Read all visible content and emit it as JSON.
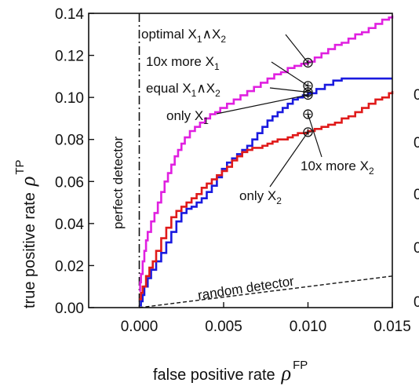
{
  "chart_data": {
    "type": "line",
    "xlabel": "false positive rate",
    "xlabel_symbol": "ρ",
    "xlabel_sup": "FP",
    "ylabel": "true positive rate",
    "ylabel_symbol": "ρ",
    "ylabel_sup": "TP",
    "xlim": [
      -0.003,
      0.015
    ],
    "ylim": [
      0.0,
      0.14
    ],
    "xticks": [
      {
        "value": 0.0,
        "label": "0.000"
      },
      {
        "value": 0.005,
        "label": "0.005"
      },
      {
        "value": 0.01,
        "label": "0.010"
      },
      {
        "value": 0.015,
        "label": "0.015"
      }
    ],
    "yticks": [
      {
        "value": 0.0,
        "label": "0.00"
      },
      {
        "value": 0.02,
        "label": "0.02"
      },
      {
        "value": 0.04,
        "label": "0.04"
      },
      {
        "value": 0.06,
        "label": "0.06"
      },
      {
        "value": 0.08,
        "label": "0.08"
      },
      {
        "value": 0.1,
        "label": "0.10"
      },
      {
        "value": 0.12,
        "label": "0.12"
      },
      {
        "value": 0.14,
        "label": "0.14"
      }
    ],
    "grid": false,
    "series": [
      {
        "key": "magenta",
        "color": "#e020e0",
        "x": [
          0.0,
          5e-05,
          0.0001,
          0.0002,
          0.0003,
          0.0004,
          0.0005,
          0.0007,
          0.0009,
          0.0011,
          0.0013,
          0.0015,
          0.0017,
          0.0019,
          0.0021,
          0.0023,
          0.0025,
          0.0027,
          0.003,
          0.0033,
          0.0036,
          0.0039,
          0.0042,
          0.0045,
          0.0048,
          0.0052,
          0.0056,
          0.006,
          0.0064,
          0.0068,
          0.0072,
          0.0076,
          0.008,
          0.0084,
          0.0088,
          0.0092,
          0.0096,
          0.01,
          0.0104,
          0.0108,
          0.0112,
          0.0116,
          0.012,
          0.0124,
          0.0128,
          0.0132,
          0.0136,
          0.014,
          0.0144,
          0.0148,
          0.015
        ],
        "y": [
          0.008,
          0.012,
          0.016,
          0.022,
          0.027,
          0.032,
          0.036,
          0.041,
          0.045,
          0.05,
          0.055,
          0.06,
          0.064,
          0.068,
          0.072,
          0.075,
          0.078,
          0.081,
          0.084,
          0.086,
          0.088,
          0.09,
          0.092,
          0.093,
          0.095,
          0.097,
          0.099,
          0.101,
          0.103,
          0.105,
          0.107,
          0.109,
          0.111,
          0.112,
          0.114,
          0.115,
          0.116,
          0.117,
          0.119,
          0.121,
          0.123,
          0.125,
          0.126,
          0.128,
          0.13,
          0.131,
          0.133,
          0.135,
          0.137,
          0.138,
          0.139
        ]
      },
      {
        "key": "blue",
        "color": "#1a1adf",
        "x": [
          0.0,
          0.0001,
          0.0002,
          0.0003,
          0.0005,
          0.0007,
          0.001,
          0.0013,
          0.0016,
          0.0019,
          0.0022,
          0.0025,
          0.0028,
          0.0031,
          0.0034,
          0.0037,
          0.004,
          0.0043,
          0.0046,
          0.0049,
          0.0052,
          0.0055,
          0.0058,
          0.0061,
          0.0064,
          0.0067,
          0.007,
          0.0073,
          0.0076,
          0.0079,
          0.0082,
          0.0085,
          0.0088,
          0.0091,
          0.0094,
          0.0097,
          0.01,
          0.0105,
          0.011,
          0.0115,
          0.012,
          0.0125,
          0.013,
          0.0135,
          0.014,
          0.015
        ],
        "y": [
          0.001,
          0.003,
          0.006,
          0.01,
          0.014,
          0.018,
          0.022,
          0.026,
          0.031,
          0.036,
          0.041,
          0.045,
          0.047,
          0.048,
          0.05,
          0.052,
          0.055,
          0.058,
          0.062,
          0.066,
          0.069,
          0.071,
          0.073,
          0.075,
          0.077,
          0.08,
          0.083,
          0.086,
          0.089,
          0.091,
          0.093,
          0.095,
          0.097,
          0.099,
          0.1,
          0.101,
          0.102,
          0.104,
          0.106,
          0.108,
          0.109,
          0.109,
          0.109,
          0.109,
          0.109,
          0.109
        ]
      },
      {
        "key": "red",
        "color": "#e01a1a",
        "x": [
          0.0,
          0.0001,
          0.0002,
          0.0004,
          0.0006,
          0.0008,
          0.001,
          0.0013,
          0.0016,
          0.0019,
          0.0022,
          0.0025,
          0.0028,
          0.0031,
          0.0034,
          0.0037,
          0.004,
          0.0043,
          0.0046,
          0.0049,
          0.0052,
          0.0055,
          0.0058,
          0.0061,
          0.0064,
          0.0067,
          0.007,
          0.0073,
          0.0076,
          0.0079,
          0.0082,
          0.0085,
          0.0088,
          0.0091,
          0.0094,
          0.0097,
          0.01,
          0.0104,
          0.0108,
          0.0112,
          0.0116,
          0.012,
          0.0124,
          0.0128,
          0.0132,
          0.0136,
          0.014,
          0.0144,
          0.0148,
          0.015
        ],
        "y": [
          0.004,
          0.007,
          0.01,
          0.015,
          0.019,
          0.022,
          0.027,
          0.033,
          0.038,
          0.043,
          0.046,
          0.048,
          0.05,
          0.052,
          0.054,
          0.057,
          0.059,
          0.061,
          0.063,
          0.065,
          0.067,
          0.07,
          0.072,
          0.074,
          0.075,
          0.076,
          0.076,
          0.077,
          0.078,
          0.079,
          0.08,
          0.08,
          0.081,
          0.082,
          0.083,
          0.083,
          0.084,
          0.085,
          0.086,
          0.087,
          0.088,
          0.09,
          0.091,
          0.093,
          0.095,
          0.097,
          0.099,
          0.1,
          0.102,
          0.103
        ]
      },
      {
        "key": "random",
        "color": "#111111",
        "style": "dashed",
        "x": [
          0.0,
          0.015
        ],
        "y": [
          0.0,
          0.015
        ]
      }
    ],
    "perfect_detector_x": 0.0,
    "markers": [
      {
        "key": "optimal",
        "x": 0.01,
        "y": 0.1165,
        "label_main": "optimal X",
        "sub1": "1",
        "mid": "∧X",
        "sub2": "2"
      },
      {
        "key": "tenx1",
        "x": 0.01,
        "y": 0.1055,
        "label_main": "10x more X",
        "sub1": "1"
      },
      {
        "key": "equal",
        "x": 0.01,
        "y": 0.1025,
        "label_main": "equal X",
        "sub1": "1",
        "mid": "∧X",
        "sub2": "2"
      },
      {
        "key": "only1",
        "x": 0.01,
        "y": 0.1012,
        "label_main": "only X",
        "sub1": "1"
      },
      {
        "key": "tenx2",
        "x": 0.01,
        "y": 0.092,
        "label_main": "10x more X",
        "sub1": "2"
      },
      {
        "key": "only2",
        "x": 0.01,
        "y": 0.0835,
        "label_main": "only X",
        "sub1": "2"
      }
    ],
    "annotations": {
      "perfect": "perfect detector",
      "random": "random detector"
    },
    "right_edge_ticks": [
      "0",
      "0",
      "0",
      "0",
      "0"
    ]
  }
}
